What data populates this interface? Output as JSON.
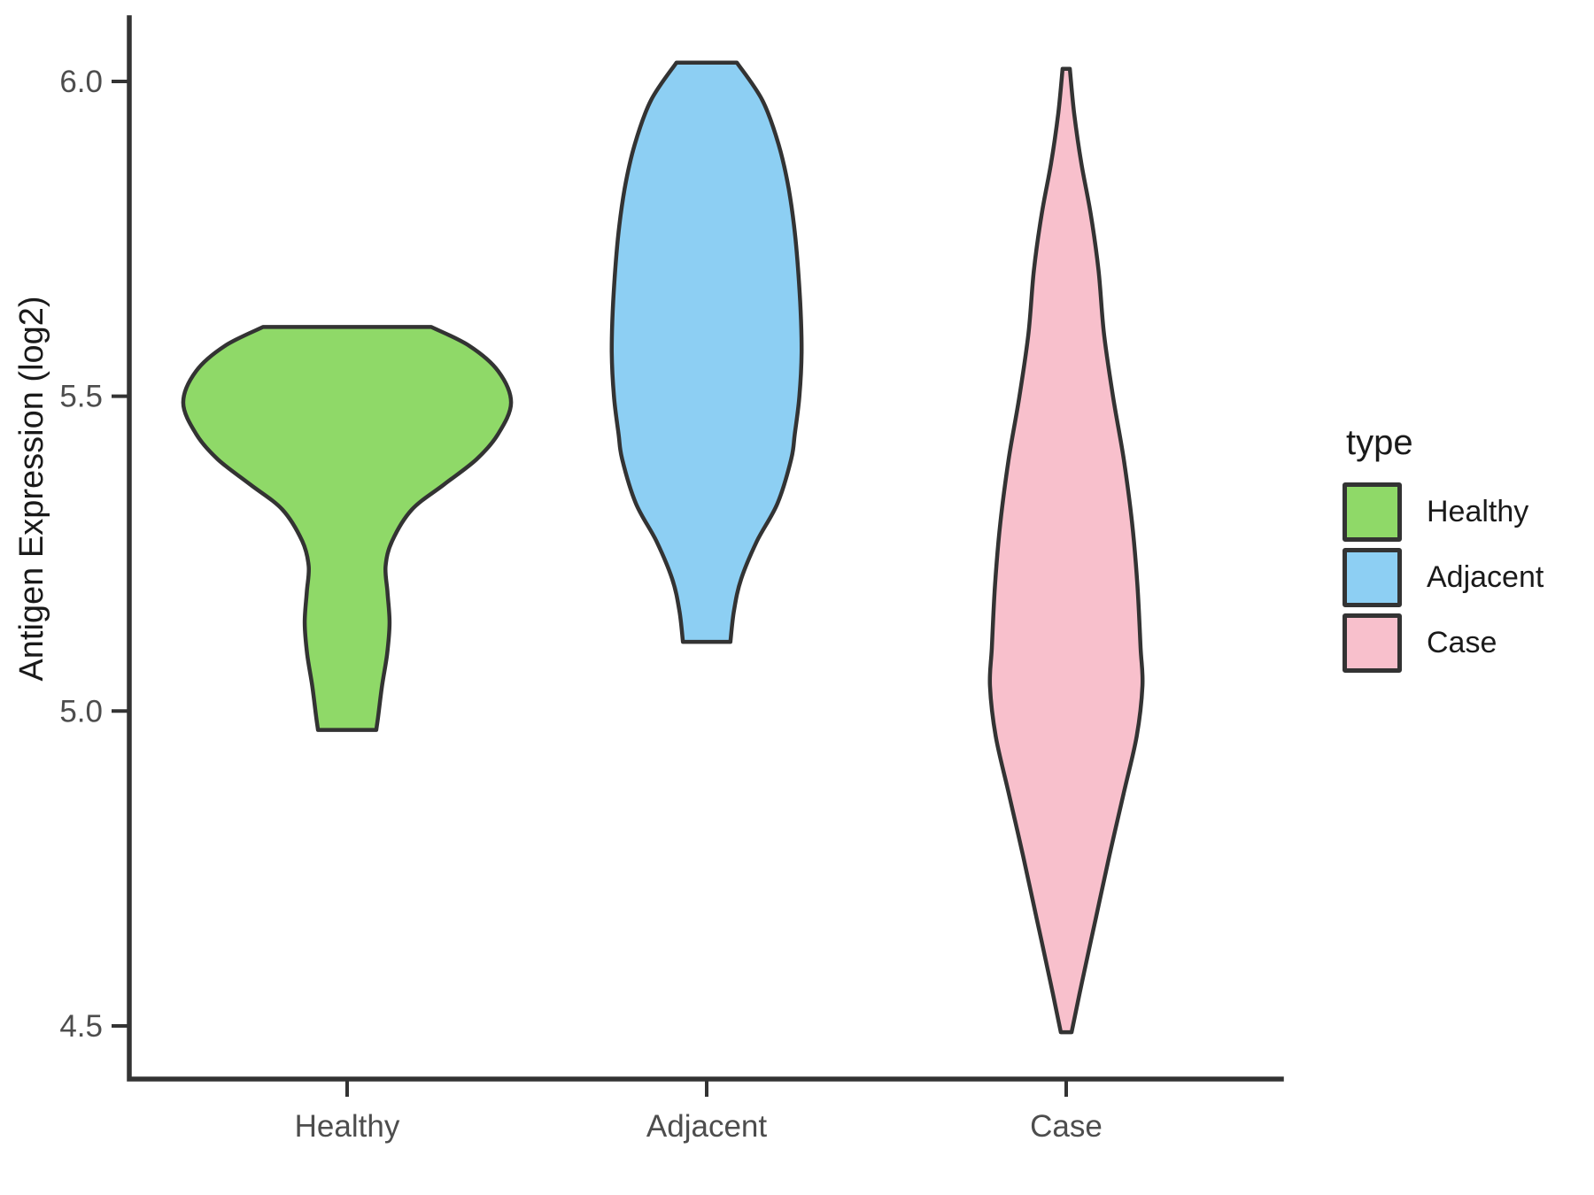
{
  "figure": {
    "background": "#ffffff",
    "axis_color": "#333333",
    "tick_label_color": "#4d4d4d",
    "text_color": "#1a1a1a"
  },
  "legend": {
    "title": "type",
    "items": [
      {
        "label": "Healthy",
        "color": "#8FD968"
      },
      {
        "label": "Adjacent",
        "color": "#8DCFF3"
      },
      {
        "label": "Case",
        "color": "#F8C0CC"
      }
    ]
  },
  "chart_data": {
    "type": "violin",
    "title": "",
    "xlabel": "",
    "ylabel": "Antigen Expression (log2)",
    "categories": [
      "Healthy",
      "Adjacent",
      "Case"
    ],
    "yticks": [
      4.5,
      5.0,
      5.5,
      6.0
    ],
    "ylim": [
      4.4,
      6.1
    ],
    "grid": false,
    "legend_position": "right",
    "legend_title": "type",
    "outline_color": "#333333",
    "series": [
      {
        "name": "Healthy",
        "fill": "#8FD968",
        "ymin": 4.97,
        "ymax": 5.61,
        "peak_value": 5.49,
        "max_halfwidth": 0.456,
        "profile": [
          [
            5.61,
            0.234
          ],
          [
            5.58,
            0.34
          ],
          [
            5.54,
            0.42
          ],
          [
            5.49,
            0.456
          ],
          [
            5.44,
            0.42
          ],
          [
            5.4,
            0.36
          ],
          [
            5.36,
            0.27
          ],
          [
            5.32,
            0.18
          ],
          [
            5.27,
            0.125
          ],
          [
            5.23,
            0.107
          ],
          [
            5.19,
            0.112
          ],
          [
            5.14,
            0.118
          ],
          [
            5.09,
            0.111
          ],
          [
            5.04,
            0.097
          ],
          [
            4.99,
            0.086
          ],
          [
            4.97,
            0.081
          ]
        ]
      },
      {
        "name": "Adjacent",
        "fill": "#8DCFF3",
        "ymin": 5.11,
        "ymax": 6.03,
        "peak_value": 5.57,
        "max_halfwidth": 0.264,
        "profile": [
          [
            6.03,
            0.084
          ],
          [
            5.97,
            0.155
          ],
          [
            5.9,
            0.2
          ],
          [
            5.83,
            0.228
          ],
          [
            5.75,
            0.247
          ],
          [
            5.65,
            0.26
          ],
          [
            5.57,
            0.264
          ],
          [
            5.5,
            0.258
          ],
          [
            5.44,
            0.245
          ],
          [
            5.4,
            0.235
          ],
          [
            5.33,
            0.197
          ],
          [
            5.27,
            0.14
          ],
          [
            5.21,
            0.096
          ],
          [
            5.16,
            0.076
          ],
          [
            5.11,
            0.066
          ]
        ]
      },
      {
        "name": "Case",
        "fill": "#F8C0CC",
        "ymin": 4.49,
        "ymax": 6.02,
        "peak_value": 5.04,
        "max_halfwidth": 0.212,
        "profile": [
          [
            6.02,
            0.01
          ],
          [
            5.95,
            0.022
          ],
          [
            5.87,
            0.042
          ],
          [
            5.79,
            0.068
          ],
          [
            5.7,
            0.09
          ],
          [
            5.6,
            0.105
          ],
          [
            5.5,
            0.13
          ],
          [
            5.4,
            0.16
          ],
          [
            5.3,
            0.183
          ],
          [
            5.2,
            0.198
          ],
          [
            5.1,
            0.207
          ],
          [
            5.04,
            0.212
          ],
          [
            4.96,
            0.196
          ],
          [
            4.87,
            0.16
          ],
          [
            4.77,
            0.12
          ],
          [
            4.67,
            0.082
          ],
          [
            4.57,
            0.044
          ],
          [
            4.49,
            0.015
          ]
        ]
      }
    ]
  }
}
